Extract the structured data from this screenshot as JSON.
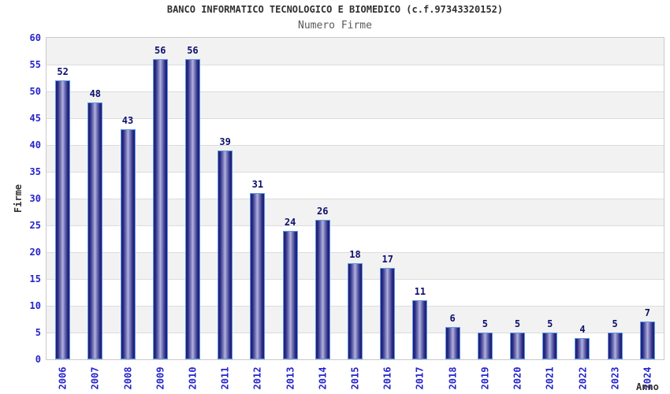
{
  "chart_data": {
    "type": "bar",
    "title": "BANCO INFORMATICO TECNOLOGICO E BIOMEDICO (c.f.97343320152)",
    "subtitle": "Numero Firme",
    "xlabel": "Anno",
    "ylabel": "Firme",
    "categories": [
      "2006",
      "2007",
      "2008",
      "2009",
      "2010",
      "2011",
      "2012",
      "2013",
      "2014",
      "2015",
      "2016",
      "2017",
      "2018",
      "2019",
      "2020",
      "2021",
      "2022",
      "2023",
      "2024"
    ],
    "values": [
      52,
      48,
      43,
      56,
      56,
      39,
      31,
      24,
      26,
      18,
      17,
      11,
      6,
      5,
      5,
      5,
      4,
      5,
      7
    ],
    "ylim": [
      0,
      60
    ],
    "yticks": [
      0,
      5,
      10,
      15,
      20,
      25,
      30,
      35,
      40,
      45,
      50,
      55,
      60
    ],
    "grid": "alternating horizontal bands every 5 units, thin line each 5",
    "legend": "none",
    "colors": {
      "bar_edge": "#1d1d75",
      "bar_center": "#b4b4e0",
      "bar_outline": "#5d9ae6",
      "value_label": "#0f0f6e",
      "axis_label": "#2424cc",
      "title": "#303030",
      "subtitle": "#5a5a5a",
      "band_gray": "#f2f2f2",
      "gridline": "#dcdcdc",
      "plot_border": "#c9c9c9"
    }
  }
}
